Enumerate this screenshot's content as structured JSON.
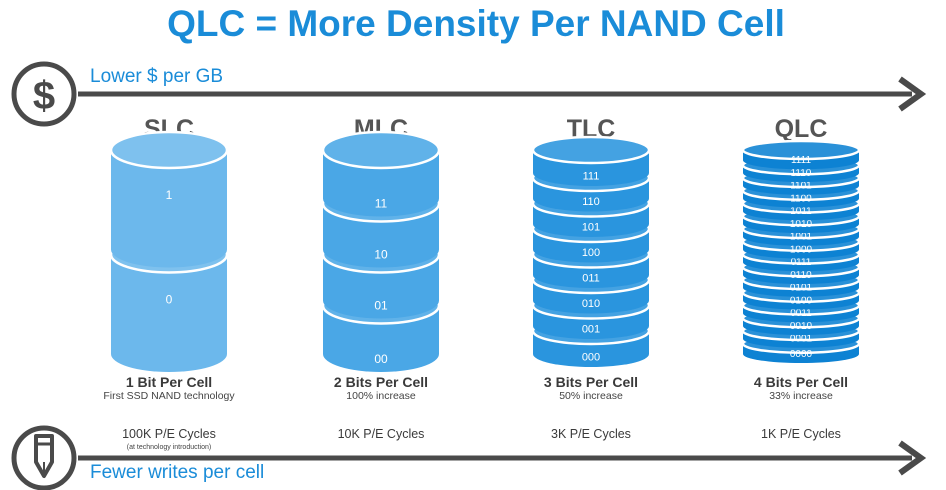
{
  "title": "QLC = More Density Per NAND Cell",
  "top_arrow": {
    "label": "Lower $ per GB",
    "icon": "dollar-icon"
  },
  "bottom_arrow": {
    "label": "Fewer writes per cell",
    "icon": "pen-icon"
  },
  "cells": [
    {
      "key": "slc",
      "name": "SLC",
      "bits_label": "1 Bit Per Cell",
      "bits_sub": "First SSD NAND technology",
      "cycles": "100K P/E Cycles",
      "cycles_note": "(at technology introduction)",
      "color": "#6cb8ec",
      "states": [
        "1",
        "0"
      ]
    },
    {
      "key": "mlc",
      "name": "MLC",
      "bits_label": "2 Bits Per Cell",
      "bits_sub": "100% increase",
      "cycles": "10K P/E Cycles",
      "color": "#4aa7e6",
      "states": [
        "11",
        "10",
        "01",
        "00"
      ]
    },
    {
      "key": "tlc",
      "name": "TLC",
      "bits_label": "3 Bits Per Cell",
      "bits_sub": "50% increase",
      "cycles": "3K P/E Cycles",
      "color": "#2a95de",
      "states": [
        "111",
        "110",
        "101",
        "100",
        "011",
        "010",
        "001",
        "000"
      ]
    },
    {
      "key": "qlc",
      "name": "QLC",
      "bits_label": "4 Bits Per Cell",
      "bits_sub": "33% increase",
      "cycles": "1K P/E Cycles",
      "color": "#0d82d3",
      "states": [
        "1111",
        "1110",
        "1101",
        "1100",
        "1011",
        "1010",
        "1001",
        "1000",
        "0111",
        "0110",
        "0101",
        "0100",
        "0011",
        "0010",
        "0001",
        "0000"
      ]
    }
  ]
}
